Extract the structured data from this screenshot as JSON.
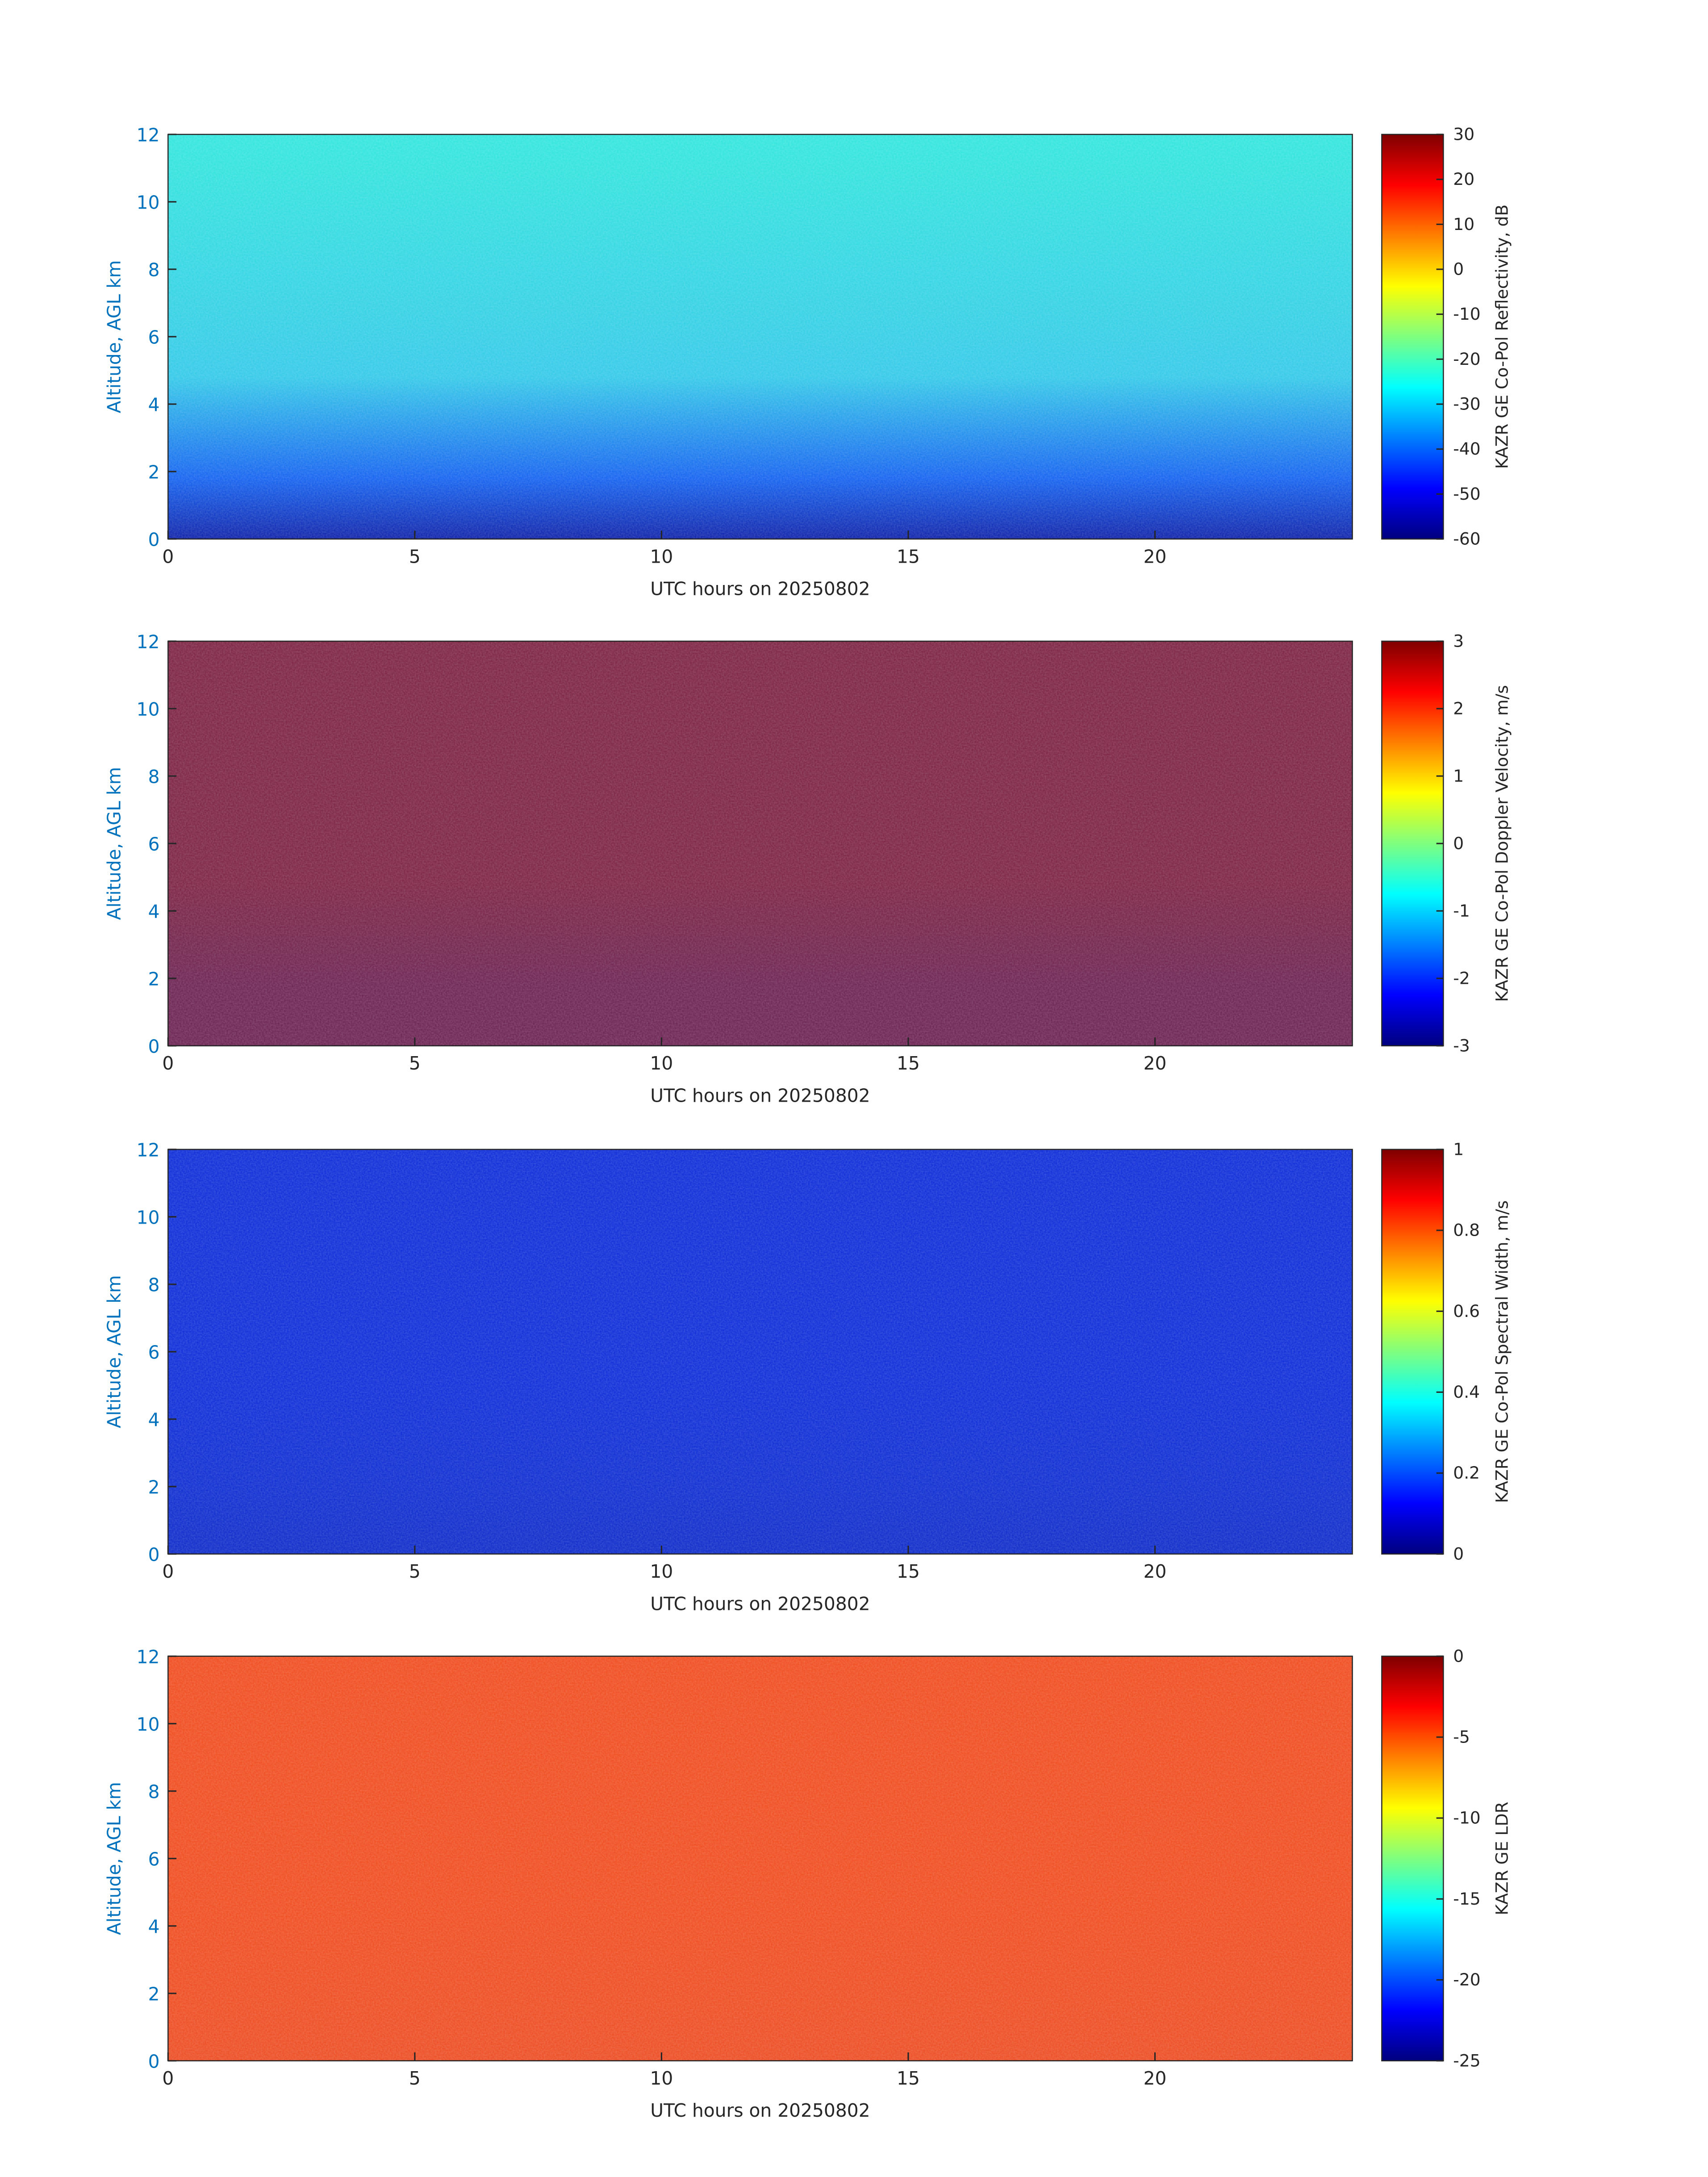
{
  "chart_data": [
    {
      "type": "heatmap",
      "xlabel": "UTC hours on 20250802",
      "ylabel": "Altitude, AGL km",
      "xlim": [
        0,
        24
      ],
      "xticks": [
        0,
        5,
        10,
        15,
        20
      ],
      "ylim": [
        0,
        12
      ],
      "yticks": [
        0,
        2,
        4,
        6,
        8,
        10,
        12
      ],
      "background": [
        "#2ee6dc",
        "#30c8e8",
        "#1060f0",
        "#0a1ea8"
      ],
      "colormap": [
        "#00007f",
        "#0000ff",
        "#007fff",
        "#00ffff",
        "#7fff7f",
        "#ffff00",
        "#ff7f00",
        "#ff0000",
        "#7f0000"
      ],
      "colorbar": {
        "label": "KAZR GE Co-Pol Reflectivity, dB",
        "clim": [
          -60,
          30
        ],
        "ticks": [
          -60,
          -50,
          -40,
          -30,
          -20,
          -10,
          0,
          10,
          20,
          30
        ]
      }
    },
    {
      "type": "heatmap",
      "xlabel": "UTC hours on 20250802",
      "ylabel": "Altitude, AGL km",
      "xlim": [
        0,
        24
      ],
      "xticks": [
        0,
        5,
        10,
        15,
        20
      ],
      "ylim": [
        0,
        12
      ],
      "yticks": [
        0,
        2,
        4,
        6,
        8,
        10,
        12
      ],
      "background": [
        "#7a2040",
        "#7a2040",
        "#6a2050",
        "#6a2050"
      ],
      "colormap": [
        "#00007f",
        "#0000ff",
        "#007fff",
        "#00ffff",
        "#7fff7f",
        "#ffff00",
        "#ff7f00",
        "#ff0000",
        "#7f0000"
      ],
      "colorbar": {
        "label": "KAZR GE Co-Pol Doppler Velocity, m/s",
        "clim": [
          -3,
          3
        ],
        "ticks": [
          -3,
          -2,
          -1,
          0,
          1,
          2,
          3
        ]
      }
    },
    {
      "type": "heatmap",
      "xlabel": "UTC hours on 20250802",
      "ylabel": "Altitude, AGL km",
      "xlim": [
        0,
        24
      ],
      "xticks": [
        0,
        5,
        10,
        15,
        20
      ],
      "ylim": [
        0,
        12
      ],
      "yticks": [
        0,
        2,
        4,
        6,
        8,
        10,
        12
      ],
      "background": [
        "#0a2ad8",
        "#0a2ad8",
        "#0a2ad0",
        "#0a28c8"
      ],
      "colormap": [
        "#00007f",
        "#0000ff",
        "#007fff",
        "#00ffff",
        "#7fff7f",
        "#ffff00",
        "#ff7f00",
        "#ff0000",
        "#7f0000"
      ],
      "colorbar": {
        "label": "KAZR GE Co-Pol Spectral Width, m/s",
        "clim": [
          0,
          1
        ],
        "ticks": [
          0,
          0.2,
          0.4,
          0.6,
          0.8,
          1
        ]
      }
    },
    {
      "type": "heatmap",
      "xlabel": "UTC hours on 20250802",
      "ylabel": "Altitude, AGL km",
      "xlim": [
        0,
        24
      ],
      "xticks": [
        0,
        5,
        10,
        15,
        20
      ],
      "ylim": [
        0,
        12
      ],
      "yticks": [
        0,
        2,
        4,
        6,
        8,
        10,
        12
      ],
      "background": [
        "#f04a1c",
        "#f04a1c",
        "#ee4a1e",
        "#ec4a20"
      ],
      "colormap": [
        "#00007f",
        "#0000ff",
        "#007fff",
        "#00ffff",
        "#7fff7f",
        "#ffff00",
        "#ff7f00",
        "#ff0000",
        "#7f0000"
      ],
      "colorbar": {
        "label": "KAZR GE LDR",
        "clim": [
          -25,
          0
        ],
        "ticks": [
          -25,
          -20,
          -15,
          -10,
          -5,
          0
        ]
      }
    }
  ]
}
